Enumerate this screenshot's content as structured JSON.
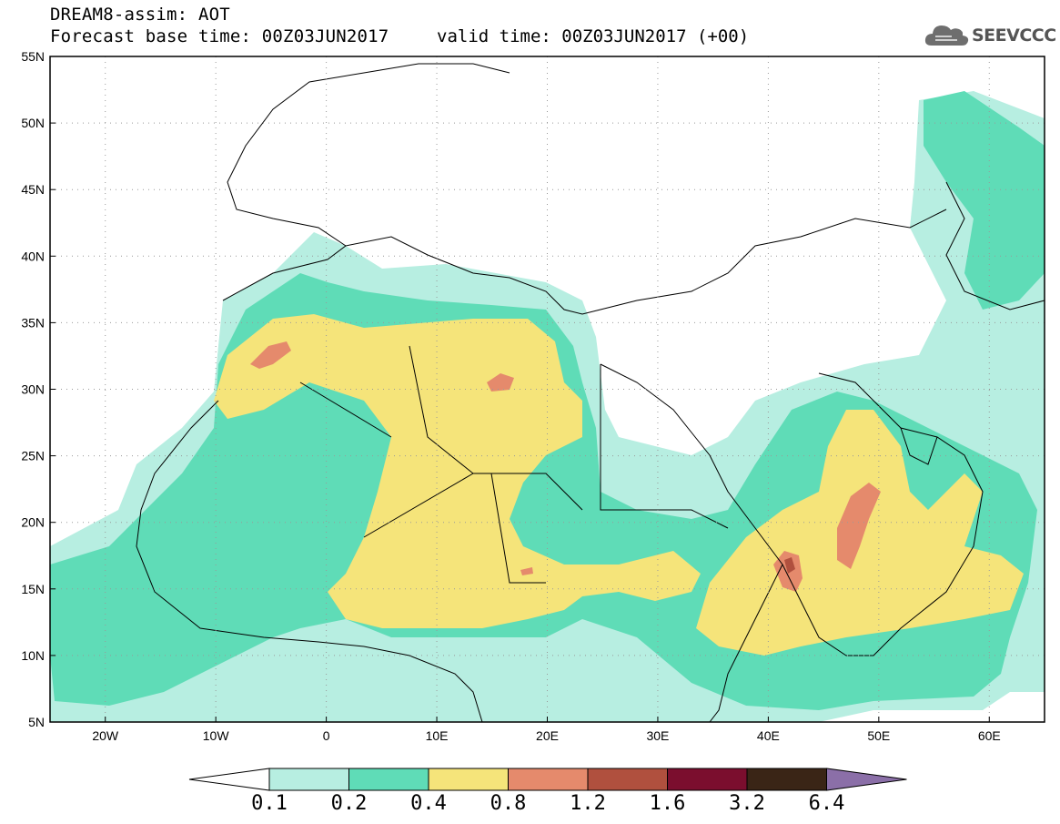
{
  "header": {
    "title": "DREAM8-assim: AOT",
    "base_time": "Forecast base time: 00Z03JUN2017",
    "valid_time": "valid time: 00Z03JUN2017 (+00)"
  },
  "logo": {
    "text": "SEEVCCC",
    "icon": "cloud-icon"
  },
  "map": {
    "lat_labels": [
      "55N",
      "50N",
      "45N",
      "40N",
      "35N",
      "30N",
      "25N",
      "20N",
      "15N",
      "10N",
      "5N"
    ],
    "lon_labels": [
      "20W",
      "10W",
      "0",
      "10E",
      "20E",
      "30E",
      "40E",
      "50E",
      "60E"
    ],
    "lon_range": [
      -25,
      65
    ],
    "lat_range": [
      5,
      55
    ],
    "grid": "dotted"
  },
  "colorbar": {
    "colors": [
      "#ffffff",
      "#b7eee1",
      "#5fdcb7",
      "#f5e47a",
      "#e58a6c",
      "#b0503e",
      "#7b0e2e",
      "#3a2516",
      "#8b6fa8"
    ],
    "labels": [
      "0.1",
      "0.2",
      "0.4",
      "0.8",
      "1.2",
      "1.6",
      "3.2",
      "6.4"
    ]
  }
}
